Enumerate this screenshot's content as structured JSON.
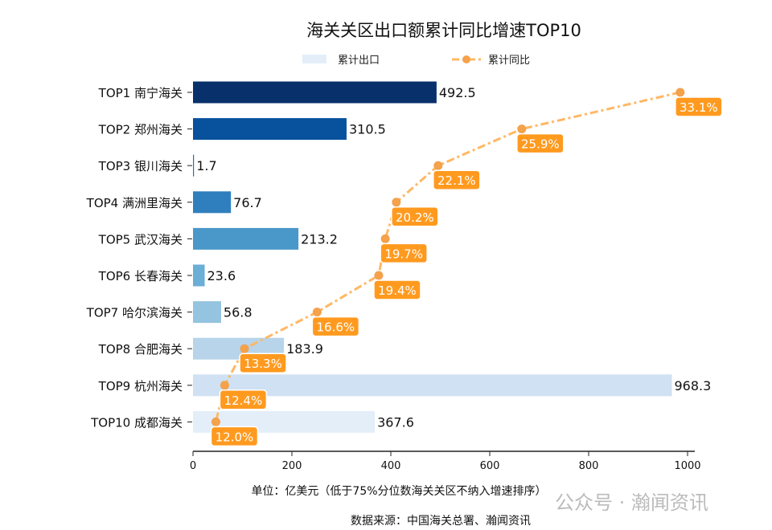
{
  "chart_data": {
    "type": "bar",
    "orientation": "horizontal",
    "title": "海关关区出口额累计同比增速TOP10",
    "categories": [
      "TOP1 南宁海关",
      "TOP2 郑州海关",
      "TOP3 银川海关",
      "TOP4 满洲里海关",
      "TOP5 武汉海关",
      "TOP6 长春海关",
      "TOP7 哈尔滨海关",
      "TOP8 合肥海关",
      "TOP9 杭州海关",
      "TOP10 成都海关"
    ],
    "series": [
      {
        "name": "累计出口",
        "type": "bar",
        "values": [
          492.5,
          310.5,
          1.7,
          76.7,
          213.2,
          23.6,
          56.8,
          183.9,
          968.3,
          367.6
        ],
        "labels": [
          "492.5",
          "310.5",
          "1.7",
          "76.7",
          "213.2",
          "23.6",
          "56.8",
          "183.9",
          "968.3",
          "367.6"
        ],
        "colors": [
          "#08306b",
          "#08519c",
          "#2171b5",
          "#2f7fbe",
          "#4a98c9",
          "#6baed6",
          "#94c4df",
          "#b7d4ea",
          "#cfe1f3",
          "#e3eef9"
        ]
      },
      {
        "name": "累计同比",
        "type": "line",
        "values": [
          33.1,
          25.9,
          22.1,
          20.2,
          19.7,
          19.4,
          16.6,
          13.3,
          12.4,
          12.0
        ],
        "labels": [
          "33.1%",
          "25.9%",
          "22.1%",
          "20.2%",
          "19.7%",
          "19.4%",
          "16.6%",
          "13.3%",
          "12.4%",
          "12.0%"
        ],
        "color": "#ffb865",
        "label_color": "#ff9a1f"
      }
    ],
    "xlim": [
      0,
      1010
    ],
    "xticks": [
      "0",
      "200",
      "400",
      "600",
      "800",
      "1000"
    ],
    "x2lim": [
      10.96,
      33.8
    ],
    "xlabel": "单位：亿美元（低于75%分位数海关关区不纳入增速排序）",
    "source": "数据来源：中国海关总署、瀚闻资讯",
    "legend": {
      "placement": "top-center",
      "items": [
        "累计出口",
        "累计同比"
      ]
    },
    "grid": false
  },
  "watermark": "公众号 · 瀚闻资讯"
}
